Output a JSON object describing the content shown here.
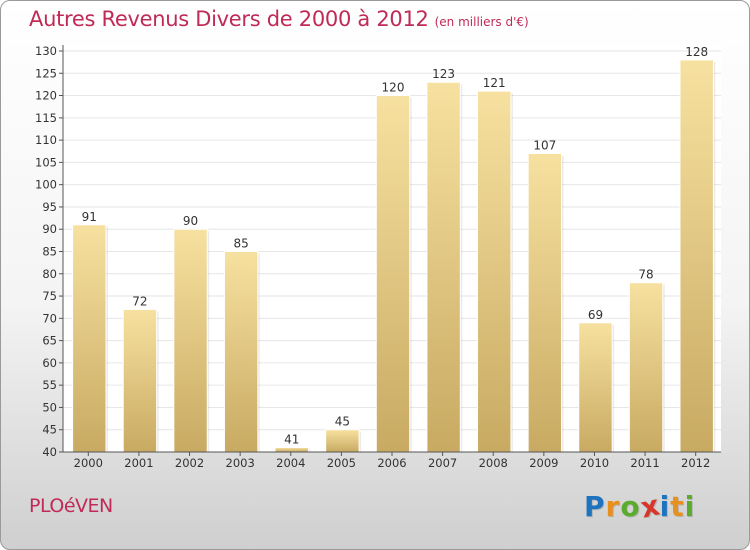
{
  "header": {
    "title": "Autres Revenus Divers de 2000 à 2012",
    "subtitle": "(en milliers d'€)"
  },
  "footer": {
    "commune": "PLOéVEN",
    "logo": "Proxiti",
    "logo_letters": [
      {
        "char": "P",
        "color": "#1e73be"
      },
      {
        "char": "r",
        "color": "#e8901f"
      },
      {
        "char": "o",
        "color": "#5aab2e"
      },
      {
        "char": "x",
        "color": "#d6372a"
      },
      {
        "char": "i",
        "color": "#1e73be"
      },
      {
        "char": "t",
        "color": "#e8901f"
      },
      {
        "char": "i",
        "color": "#5aab2e"
      }
    ]
  },
  "colors": {
    "title": "#c02a56",
    "bar_light": "#f7e1a0",
    "bar_dark": "#c8aa62",
    "axis": "#555555",
    "grid": "#e6e6e6"
  },
  "chart_data": {
    "type": "bar",
    "categories": [
      "2000",
      "2001",
      "2002",
      "2003",
      "2004",
      "2005",
      "2006",
      "2007",
      "2008",
      "2009",
      "2010",
      "2011",
      "2012"
    ],
    "values": [
      91,
      72,
      90,
      85,
      41,
      45,
      120,
      123,
      121,
      107,
      69,
      78,
      128
    ],
    "title": "Autres Revenus Divers de 2000 à 2012",
    "subtitle": "(en milliers d'€)",
    "xlabel": "",
    "ylabel": "",
    "ylim": [
      40,
      130
    ],
    "ytick_step": 5,
    "grid": true,
    "data_labels": true
  }
}
